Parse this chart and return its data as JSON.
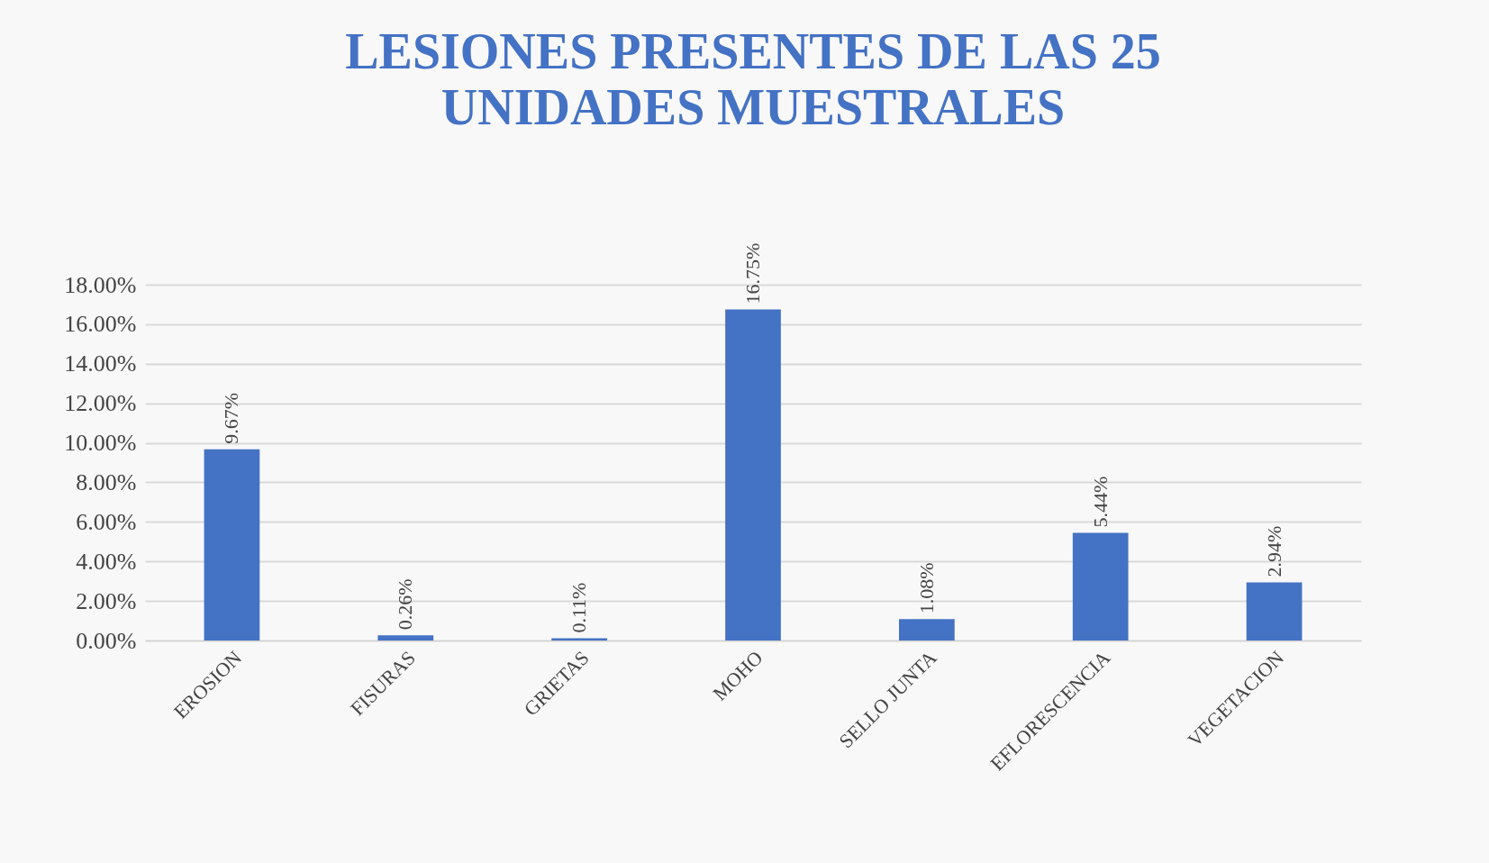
{
  "chart_data": {
    "type": "bar",
    "title": "LESIONES PRESENTES DE LAS 25 UNIDADES MUESTRALES",
    "categories": [
      "EROSION",
      "FISURAS",
      "GRIETAS",
      "MOHO",
      "SELLO JUNTA",
      "EFLORESCENCIA",
      "VEGETACION"
    ],
    "values": [
      9.67,
      0.26,
      0.11,
      16.75,
      1.08,
      5.44,
      2.94
    ],
    "value_labels": [
      "9.67%",
      "0.26%",
      "0.11%",
      "16.75%",
      "1.08%",
      "5.44%",
      "2.94%"
    ],
    "color": "#4472c4",
    "ylim": [
      0,
      18
    ],
    "yticks": [
      {
        "value": 0,
        "label": "0.00%"
      },
      {
        "value": 2,
        "label": "2.00%"
      },
      {
        "value": 4,
        "label": "4.00%"
      },
      {
        "value": 6,
        "label": "6.00%"
      },
      {
        "value": 8,
        "label": "8.00%"
      },
      {
        "value": 10,
        "label": "10.00%"
      },
      {
        "value": 12,
        "label": "12.00%"
      },
      {
        "value": 14,
        "label": "14.00%"
      },
      {
        "value": 16,
        "label": "16.00%"
      },
      {
        "value": 18,
        "label": "18.00%"
      }
    ],
    "grid": "y"
  }
}
